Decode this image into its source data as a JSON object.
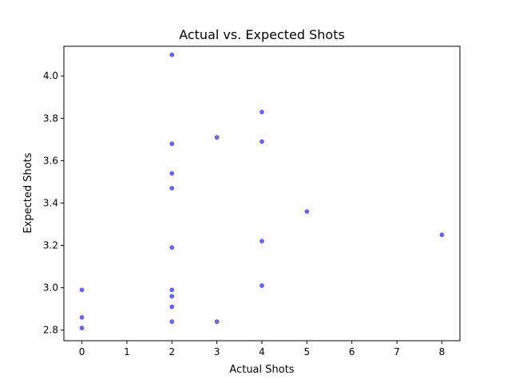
{
  "chart_data": {
    "type": "scatter",
    "title": "Actual vs. Expected Shots",
    "xlabel": "Actual Shots",
    "ylabel": "Expected Shots",
    "xlim": [
      -0.4,
      8.4
    ],
    "ylim": [
      2.75,
      4.14
    ],
    "xticks": [
      0,
      1,
      2,
      3,
      4,
      5,
      6,
      7,
      8
    ],
    "xtick_labels": [
      "0",
      "1",
      "2",
      "3",
      "4",
      "5",
      "6",
      "7",
      "8"
    ],
    "yticks": [
      2.8,
      3.0,
      3.2,
      3.4,
      3.6,
      3.8,
      4.0
    ],
    "ytick_labels": [
      "2.8",
      "3.0",
      "3.2",
      "3.4",
      "3.6",
      "3.8",
      "4.0"
    ],
    "grid": false,
    "marker_color": "#0000ff",
    "points": [
      {
        "x": 2,
        "y": 4.1
      },
      {
        "x": 4,
        "y": 3.83
      },
      {
        "x": 3,
        "y": 3.71
      },
      {
        "x": 2,
        "y": 3.68
      },
      {
        "x": 4,
        "y": 3.69
      },
      {
        "x": 2,
        "y": 3.54
      },
      {
        "x": 2,
        "y": 3.47
      },
      {
        "x": 5,
        "y": 3.36
      },
      {
        "x": 8,
        "y": 3.25
      },
      {
        "x": 4,
        "y": 3.22
      },
      {
        "x": 2,
        "y": 3.19
      },
      {
        "x": 4,
        "y": 3.01
      },
      {
        "x": 0,
        "y": 2.99
      },
      {
        "x": 2,
        "y": 2.99
      },
      {
        "x": 2,
        "y": 2.96
      },
      {
        "x": 2,
        "y": 2.91
      },
      {
        "x": 0,
        "y": 2.86
      },
      {
        "x": 2,
        "y": 2.84
      },
      {
        "x": 3,
        "y": 2.84
      },
      {
        "x": 0,
        "y": 2.81
      }
    ]
  }
}
